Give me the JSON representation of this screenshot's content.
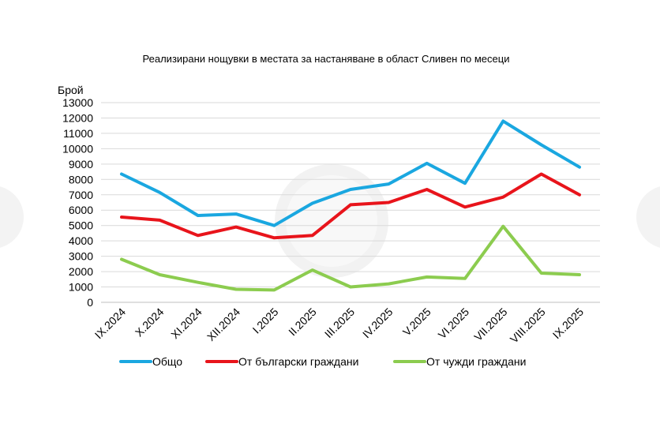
{
  "chart_data": {
    "type": "line",
    "title": "Реализирани нощувки в местата за настаняване в област Сливен по месеци",
    "ylabel": "Брой",
    "xlabel": "",
    "ylim": [
      0,
      13000
    ],
    "yticks": [
      0,
      1000,
      2000,
      3000,
      4000,
      5000,
      6000,
      7000,
      8000,
      9000,
      10000,
      11000,
      12000,
      13000
    ],
    "categories": [
      "IX.2024",
      "X.2024",
      "XI.2024",
      "XII.2024",
      "I.2025",
      "II.2025",
      "III.2025",
      "IV.2025",
      "V.2025",
      "VI.2025",
      "VII.2025",
      "VIII.2025",
      "IX.2025"
    ],
    "grid": true,
    "legend_position": "bottom",
    "series": [
      {
        "name": "Общо",
        "color": "#1aa7e0",
        "values": [
          8350,
          7150,
          5650,
          5750,
          5000,
          6450,
          7350,
          7700,
          9050,
          7750,
          11800,
          10250,
          8800
        ]
      },
      {
        "name": "От български граждани",
        "color": "#e8141b",
        "values": [
          5550,
          5350,
          4350,
          4900,
          4200,
          4350,
          6350,
          6500,
          7350,
          6200,
          6850,
          8350,
          7000
        ]
      },
      {
        "name": "От чужди граждани",
        "color": "#8ccc4f",
        "values": [
          2800,
          1800,
          1300,
          850,
          800,
          2100,
          1000,
          1200,
          1650,
          1550,
          4950,
          1900,
          1800
        ]
      }
    ]
  }
}
